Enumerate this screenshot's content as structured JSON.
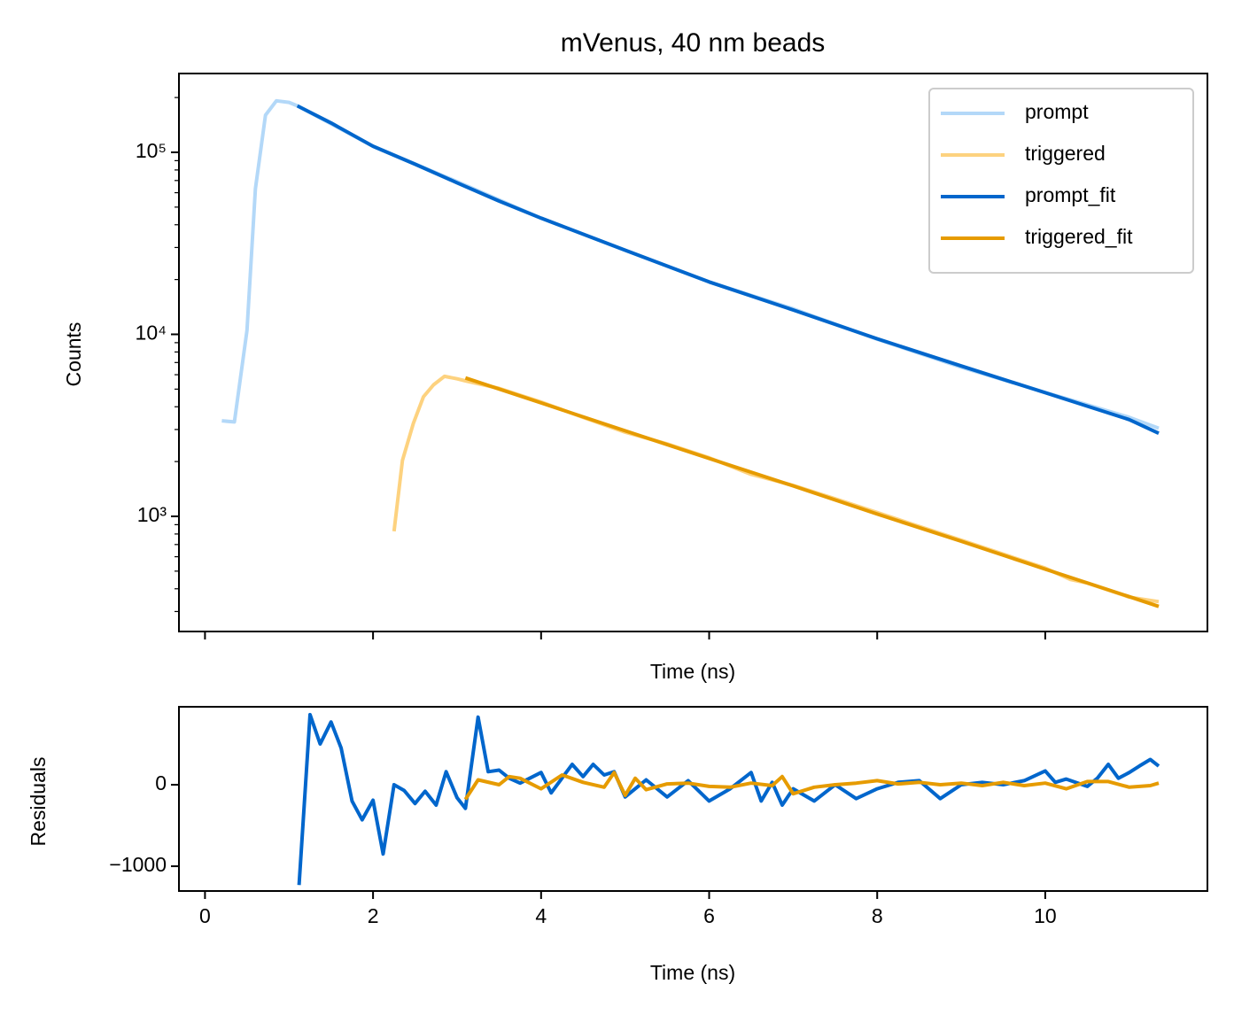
{
  "chart_data": [
    {
      "type": "line",
      "title": "mVenus, 40 nm beads",
      "xlabel": "Time (ns)",
      "ylabel": "Counts",
      "log_y": true,
      "legend": "upper right",
      "xlim": [
        -0.31,
        11.93
      ],
      "ylim": [
        233,
        271000
      ],
      "xticks": [
        0,
        2,
        4,
        6,
        8,
        10
      ],
      "yticks": [
        {
          "value": 1000,
          "label": "10³"
        },
        {
          "value": 10000,
          "label": "10⁴"
        },
        {
          "value": 100000,
          "label": "10⁵"
        }
      ],
      "yminorticks": [
        300,
        400,
        500,
        600,
        700,
        800,
        900,
        2000,
        3000,
        4000,
        5000,
        6000,
        7000,
        8000,
        9000,
        20000,
        30000,
        40000,
        50000,
        60000,
        70000,
        80000,
        90000,
        200000
      ],
      "series": [
        {
          "name": "prompt",
          "color": "#b3d8f8",
          "x": [
            0.2,
            0.35,
            0.5,
            0.6,
            0.72,
            0.85,
            1.0,
            1.1,
            2,
            3,
            4,
            5,
            6,
            7,
            8,
            9,
            10,
            10.5,
            11,
            11.35
          ],
          "values": [
            3350,
            3300,
            10500,
            63000,
            160000,
            192000,
            188000,
            180000,
            108000,
            69000,
            43500,
            29000,
            19400,
            13800,
            9400,
            6600,
            4800,
            4100,
            3500,
            3050
          ]
        },
        {
          "name": "triggered",
          "color": "#fdd27f",
          "x": [
            2.25,
            2.35,
            2.48,
            2.6,
            2.72,
            2.85,
            3.0,
            3.1,
            3.5,
            4,
            4.5,
            5,
            5.5,
            6,
            6.5,
            7,
            7.5,
            8,
            8.5,
            9,
            9.5,
            10,
            10.3,
            10.5,
            11,
            11.35
          ],
          "values": [
            827,
            2030,
            3240,
            4540,
            5280,
            5880,
            5700,
            5550,
            5050,
            4250,
            3500,
            2900,
            2500,
            2100,
            1700,
            1480,
            1250,
            1050,
            880,
            740,
            620,
            520,
            450,
            430,
            360,
            340
          ]
        },
        {
          "name": "prompt_fit",
          "color": "#0066cc",
          "x": [
            1.1,
            1.5,
            2,
            2.5,
            3,
            3.5,
            4,
            5,
            6,
            7,
            8,
            9,
            10,
            11,
            11.35
          ],
          "values": [
            180000,
            145000,
            108000,
            86000,
            68000,
            54000,
            43500,
            29000,
            19400,
            13600,
            9450,
            6700,
            4780,
            3400,
            2860
          ]
        },
        {
          "name": "triggered_fit",
          "color": "#e69b00",
          "x": [
            3.1,
            4,
            5,
            6,
            7,
            8,
            9,
            10,
            11,
            11.35
          ],
          "values": [
            5760,
            4200,
            2950,
            2080,
            1470,
            1030,
            730,
            513,
            362,
            320
          ]
        }
      ]
    },
    {
      "type": "line",
      "xlabel": "Time (ns)",
      "ylabel": "Residuals",
      "xlim": [
        -0.31,
        11.93
      ],
      "ylim": [
        -1304,
        957
      ],
      "xticks": [
        0,
        2,
        4,
        6,
        8,
        10
      ],
      "yticks": [
        {
          "value": -1000,
          "label": "−1000"
        },
        0
      ],
      "series": [
        {
          "color": "#0066cc",
          "x": [
            1.12,
            1.25,
            1.37,
            1.5,
            1.62,
            1.75,
            1.87,
            2.0,
            2.12,
            2.25,
            2.37,
            2.5,
            2.62,
            2.75,
            2.87,
            3.0,
            3.1,
            3.25,
            3.37,
            3.5,
            3.62,
            3.75,
            4.0,
            4.12,
            4.37,
            4.5,
            4.62,
            4.75,
            4.87,
            5.0,
            5.25,
            5.5,
            5.75,
            6.0,
            6.25,
            6.5,
            6.62,
            6.75,
            6.87,
            7.0,
            7.25,
            7.5,
            7.75,
            8.0,
            8.25,
            8.5,
            8.75,
            9.0,
            9.25,
            9.5,
            9.75,
            10.0,
            10.12,
            10.25,
            10.5,
            10.62,
            10.75,
            10.87,
            11.0,
            11.12,
            11.25,
            11.35
          ],
          "values": [
            -1230,
            860,
            500,
            770,
            450,
            -200,
            -430,
            -190,
            -850,
            0,
            -70,
            -230,
            -80,
            -250,
            160,
            -160,
            -290,
            830,
            160,
            180,
            80,
            20,
            150,
            -100,
            250,
            100,
            250,
            120,
            160,
            -150,
            60,
            -150,
            50,
            -200,
            -50,
            150,
            -200,
            30,
            -250,
            -50,
            -200,
            0,
            -170,
            -50,
            30,
            50,
            -170,
            0,
            30,
            0,
            50,
            170,
            30,
            70,
            -20,
            80,
            250,
            80,
            150,
            230,
            310,
            230
          ]
        },
        {
          "color": "#e69b00",
          "x": [
            3.1,
            3.25,
            3.5,
            3.62,
            3.75,
            4.0,
            4.25,
            4.5,
            4.75,
            4.87,
            5.0,
            5.12,
            5.25,
            5.5,
            5.75,
            6.0,
            6.25,
            6.5,
            6.75,
            6.87,
            7.0,
            7.25,
            7.5,
            7.75,
            8.0,
            8.25,
            8.5,
            8.75,
            9.0,
            9.25,
            9.5,
            9.75,
            10.0,
            10.25,
            10.5,
            10.75,
            11.0,
            11.25,
            11.35
          ],
          "values": [
            -180,
            60,
            0,
            100,
            80,
            -50,
            120,
            30,
            -30,
            150,
            -130,
            80,
            -60,
            10,
            20,
            -20,
            -30,
            20,
            -10,
            100,
            -110,
            -30,
            0,
            20,
            50,
            10,
            30,
            0,
            20,
            -10,
            30,
            -10,
            20,
            -50,
            40,
            40,
            -30,
            -10,
            20
          ]
        }
      ]
    }
  ]
}
